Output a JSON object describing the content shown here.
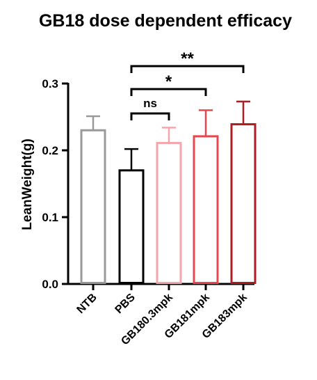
{
  "chart_data": {
    "type": "bar",
    "title": "GB18 dose dependent efficacy",
    "xlabel": "",
    "ylabel": "LeanWeight(g)",
    "ylim": [
      0,
      0.3
    ],
    "yticks": [
      "0.0",
      "0.1",
      "0.2",
      "0.3"
    ],
    "categories": [
      "NTB",
      "PBS",
      "GB180.3mpk",
      "GB181mpk",
      "GB183mpk"
    ],
    "values": [
      0.23,
      0.17,
      0.211,
      0.221,
      0.239
    ],
    "error_upper": [
      0.251,
      0.202,
      0.234,
      0.26,
      0.273
    ],
    "colors": [
      "#999999",
      "#000000",
      "#f4a6ab",
      "#e8474f",
      "#b01c22"
    ],
    "grid": false,
    "legend": "none",
    "significance": [
      {
        "from": "PBS",
        "to": "GB180.3mpk",
        "label": "ns"
      },
      {
        "from": "PBS",
        "to": "GB181mpk",
        "label": "*"
      },
      {
        "from": "PBS",
        "to": "GB183mpk",
        "label": "**"
      }
    ]
  }
}
